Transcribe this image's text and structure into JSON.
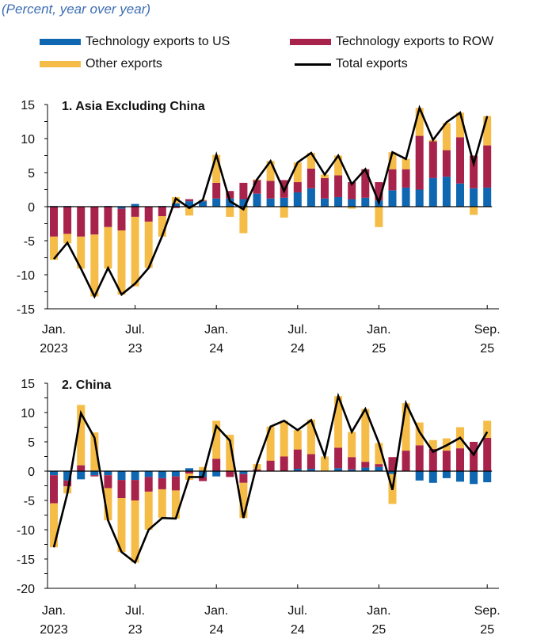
{
  "subtitle": "(Percent, year over year)",
  "legend": [
    {
      "label": "Technology exports to US",
      "color": "#0f67b1",
      "kind": "bar"
    },
    {
      "label": "Technology exports to ROW",
      "color": "#a8234b",
      "kind": "bar"
    },
    {
      "label": "Other exports",
      "color": "#f5bd47",
      "kind": "bar"
    },
    {
      "label": "Total exports",
      "color": "#000000",
      "kind": "line"
    }
  ],
  "chart_data": [
    {
      "type": "bar",
      "stacked": true,
      "title": "1. Asia Excluding China",
      "ylabel": "Percent, year over year",
      "ylim": [
        -15,
        15
      ],
      "yticks": [
        -15,
        -10,
        -5,
        0,
        5,
        10,
        15
      ],
      "x": [
        "2023-01",
        "2023-02",
        "2023-03",
        "2023-04",
        "2023-05",
        "2023-06",
        "2023-07",
        "2023-08",
        "2023-09",
        "2023-10",
        "2023-11",
        "2023-12",
        "2024-01",
        "2024-02",
        "2024-03",
        "2024-04",
        "2024-05",
        "2024-06",
        "2024-07",
        "2024-08",
        "2024-09",
        "2024-10",
        "2024-11",
        "2024-12",
        "2025-01",
        "2025-02",
        "2025-03",
        "2025-04",
        "2025-05",
        "2025-06",
        "2025-07",
        "2025-08",
        "2025-09"
      ],
      "xticks": [
        {
          "index": 0,
          "l1": "Jan.",
          "l2": "2023"
        },
        {
          "index": 6,
          "l1": "Jul.",
          "l2": "23"
        },
        {
          "index": 12,
          "l1": "Jan.",
          "l2": "24"
        },
        {
          "index": 18,
          "l1": "Jul.",
          "l2": "24"
        },
        {
          "index": 24,
          "l1": "Jan.",
          "l2": "25"
        },
        {
          "index": 32,
          "l1": "Sep.",
          "l2": "25"
        }
      ],
      "series": [
        {
          "name": "Technology exports to US",
          "values": [
            0.1,
            0.1,
            0,
            0,
            0.1,
            -0.3,
            0.4,
            0,
            0.1,
            0.5,
            0.8,
            0.8,
            1.2,
            1.2,
            1.1,
            1.9,
            1.2,
            1.3,
            2.1,
            2.7,
            1.2,
            1.4,
            1.1,
            1.3,
            0.9,
            2.4,
            2.8,
            2.5,
            4.2,
            4.4,
            3.4,
            2.7,
            2.8
          ]
        },
        {
          "name": "Technology exports to ROW",
          "values": [
            -4.4,
            -4.0,
            -4.4,
            -4.1,
            -3.0,
            -3.2,
            -1.5,
            -2.2,
            -1.4,
            -0.2,
            0.3,
            0.1,
            2.3,
            1.1,
            2.4,
            2.0,
            2.6,
            2.6,
            1.5,
            2.9,
            3.0,
            3.2,
            2.5,
            4.2,
            2.7,
            3.1,
            2.7,
            7.9,
            5.4,
            3.9,
            6.8,
            4.8,
            6.2
          ]
        },
        {
          "name": "Other exports",
          "values": [
            -3.4,
            -1.4,
            -4.7,
            -9.1,
            -6.1,
            -9.4,
            -10.2,
            -6.8,
            -3.0,
            0.9,
            -1.3,
            0.1,
            4.1,
            -1.5,
            -3.9,
            0.1,
            2.9,
            -1.6,
            2.9,
            2.3,
            0.5,
            2.9,
            -0.3,
            0,
            -3.0,
            2.5,
            1.5,
            4.1,
            0.2,
            4.0,
            3.6,
            -1.2,
            4.3
          ]
        },
        {
          "name": "Total exports",
          "kind": "line",
          "values": [
            -7.7,
            -5.3,
            -9.1,
            -13.2,
            -9.0,
            -12.9,
            -11.3,
            -9.0,
            -4.3,
            1.2,
            -0.2,
            1.0,
            7.6,
            0.8,
            -0.4,
            4.0,
            6.7,
            2.3,
            6.5,
            7.9,
            4.7,
            7.5,
            3.3,
            5.5,
            0.6,
            8.0,
            7.0,
            14.5,
            9.8,
            12.4,
            13.8,
            6.3,
            13.3
          ]
        }
      ]
    },
    {
      "type": "bar",
      "stacked": true,
      "title": "2. China",
      "ylabel": "Percent, year over year",
      "ylim": [
        -20,
        15
      ],
      "yticks": [
        -20,
        -15,
        -10,
        -5,
        0,
        5,
        10,
        15
      ],
      "x": [
        "2023-01",
        "2023-02",
        "2023-03",
        "2023-04",
        "2023-05",
        "2023-06",
        "2023-07",
        "2023-08",
        "2023-09",
        "2023-10",
        "2023-11",
        "2023-12",
        "2024-01",
        "2024-02",
        "2024-03",
        "2024-04",
        "2024-05",
        "2024-06",
        "2024-07",
        "2024-08",
        "2024-09",
        "2024-10",
        "2024-11",
        "2024-12",
        "2025-01",
        "2025-02",
        "2025-03",
        "2025-04",
        "2025-05",
        "2025-06",
        "2025-07",
        "2025-08",
        "2025-09"
      ],
      "xticks": [
        {
          "index": 0,
          "l1": "Jan.",
          "l2": "2023"
        },
        {
          "index": 6,
          "l1": "Jul.",
          "l2": "23"
        },
        {
          "index": 12,
          "l1": "Jan.",
          "l2": "24"
        },
        {
          "index": 18,
          "l1": "Jul.",
          "l2": "24"
        },
        {
          "index": 24,
          "l1": "Jan.",
          "l2": "25"
        },
        {
          "index": 32,
          "l1": "Sep.",
          "l2": "25"
        }
      ],
      "series": [
        {
          "name": "Technology exports to US",
          "values": [
            -0.7,
            -1.6,
            -1.4,
            -0.7,
            -0.7,
            -1.5,
            -1.5,
            -1.0,
            -1.2,
            -0.9,
            0.5,
            -1.0,
            -0.9,
            0,
            -0.5,
            0,
            0,
            0,
            0.4,
            0.4,
            0,
            0.5,
            0.3,
            0.6,
            0.7,
            -0.5,
            0,
            -1.6,
            -2.0,
            -1.2,
            -1.8,
            -2.2,
            -1.9
          ]
        },
        {
          "name": "Technology exports to ROW",
          "values": [
            -4.8,
            -1.0,
            1.0,
            -0.2,
            -2.2,
            -3.1,
            -3.5,
            -2.5,
            -1.9,
            -2.4,
            -0.4,
            -0.7,
            2.1,
            -1.0,
            -1.5,
            0.3,
            1.8,
            2.5,
            3.3,
            2.5,
            0,
            3.5,
            2.1,
            1.0,
            0.5,
            2.4,
            3.5,
            4.4,
            3.8,
            3.5,
            3.9,
            5.0,
            5.7
          ]
        },
        {
          "name": "Other exports",
          "values": [
            -7.5,
            -1.2,
            10.3,
            6.6,
            -5.5,
            -9.2,
            -10.6,
            -6.5,
            -4.9,
            -4.8,
            -1.1,
            0.7,
            6.5,
            6.2,
            -6.0,
            0.9,
            5.8,
            6.1,
            3.3,
            5.9,
            2.5,
            8.8,
            4.3,
            9.0,
            3.6,
            -5.1,
            8.1,
            3.9,
            1.5,
            2.1,
            3.6,
            0,
            2.9
          ]
        },
        {
          "name": "Total exports",
          "kind": "line",
          "values": [
            -13.0,
            -3.8,
            9.9,
            5.7,
            -8.4,
            -13.8,
            -15.6,
            -10.0,
            -8.0,
            -8.1,
            -1.0,
            -1.0,
            7.7,
            5.2,
            -8.0,
            1.2,
            7.6,
            8.6,
            7.0,
            8.7,
            2.5,
            12.8,
            6.7,
            10.6,
            4.8,
            -3.2,
            11.6,
            6.7,
            3.3,
            4.4,
            5.7,
            2.8,
            6.7
          ]
        }
      ]
    }
  ]
}
